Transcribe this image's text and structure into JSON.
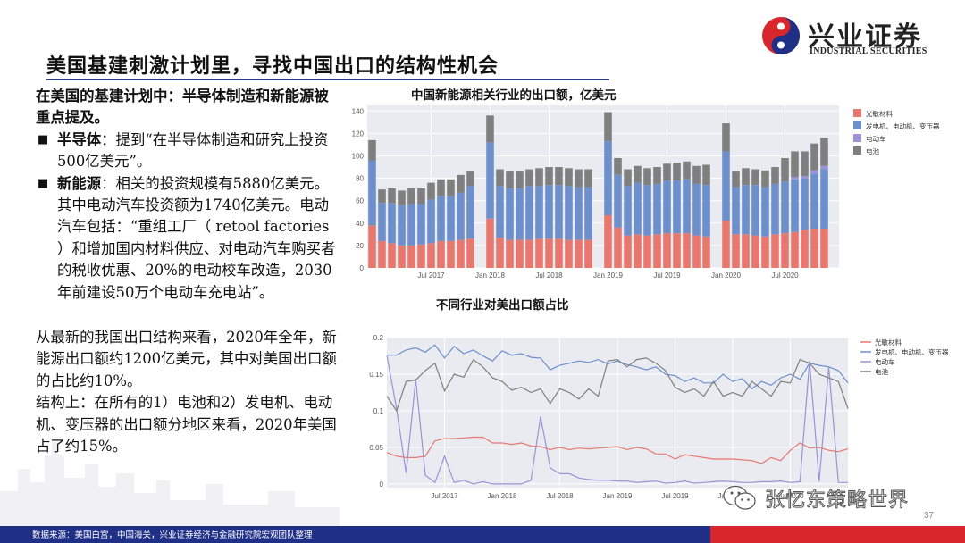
{
  "header": {
    "logo_text": "兴业证券",
    "logo_en": "INDUSTRIAL SECURITIES",
    "title": "美国基建刺激计划里，寻找中国出口的结构性机会"
  },
  "left": {
    "intro": "在美国的基建计划中：半导体制造和新能源被重点提及。",
    "bullets": [
      {
        "label": "半导体",
        "text": "：提到“在半导体制造和研究上投资500亿美元”。"
      },
      {
        "label": "新能源",
        "text": "：相关的投资规模有5880亿美元。其中电动汽车投资额为1740亿美元。电动汽车包括：“重组工厂（ retool factories ）和增加国内材料供应、对电动汽车购买者的税收优惠、20%的电动校车改造，2030年前建设50万个电动车充电站”。"
      }
    ],
    "para2": "从最新的我国出口结构来看，2020年全年，新能源出口额约1200亿美元，其中对美国出口额的占比约10%。",
    "para3": "结构上：在所有的1）电池和2）发电机、电动机、变压器的出口额分地区来看，2020年美国占了约15%。"
  },
  "footer": {
    "source": "数据来源：美国白宫，中国海关，兴业证券经济与金融研究院宏观团队整理",
    "page": "37",
    "watermark": "张忆东策略世界"
  },
  "colors": {
    "solar": "#e8776e",
    "motor": "#6d8fcc",
    "ev": "#9b93d6",
    "battery": "#7f7f7f",
    "brand_blue": "#1f2f86",
    "brand_red": "#d7262c",
    "plot_bg": "#e9ebf1"
  },
  "chart_data": [
    {
      "type": "bar",
      "stacked": true,
      "title": "中国新能源相关行业的出口额，亿美元",
      "ylim": [
        0,
        145
      ],
      "yticks": [
        0,
        20,
        40,
        60,
        80,
        100,
        120,
        140
      ],
      "xtick_labels": [
        "Jul 2017",
        "Jan 2018",
        "Jul 2018",
        "Jan 2019",
        "Jul 2019",
        "Jan 2020",
        "Jul 2020"
      ],
      "xtick_months": [
        6,
        12,
        18,
        24,
        30,
        36,
        42
      ],
      "months": [
        "2017-01",
        "2017-02",
        "2017-03",
        "2017-04",
        "2017-05",
        "2017-06",
        "2017-07",
        "2017-08",
        "2017-09",
        "2017-10",
        "2017-11",
        "2017-12",
        "2018-01",
        "2018-02",
        "2018-03",
        "2018-04",
        "2018-05",
        "2018-06",
        "2018-07",
        "2018-08",
        "2018-09",
        "2018-10",
        "2018-11",
        "2018-12",
        "2019-01",
        "2019-02",
        "2019-03",
        "2019-04",
        "2019-05",
        "2019-06",
        "2019-07",
        "2019-08",
        "2019-09",
        "2019-10",
        "2019-11",
        "2019-12",
        "2020-01",
        "2020-02",
        "2020-03",
        "2020-04",
        "2020-05",
        "2020-06",
        "2020-07",
        "2020-08",
        "2020-09",
        "2020-10",
        "2020-11",
        "2020-12"
      ],
      "missing_months": [
        "2017-12",
        "2018-12",
        "2019-12"
      ],
      "legend_position": "right",
      "series": [
        {
          "name": "光敏材料",
          "values": [
            38,
            24,
            22,
            20,
            20,
            21,
            22,
            24,
            24,
            25,
            26,
            0,
            44,
            27,
            25,
            25,
            25,
            26,
            26,
            26,
            25,
            25,
            25,
            0,
            47,
            36,
            29,
            30,
            29,
            30,
            31,
            31,
            31,
            29,
            28,
            0,
            42,
            30,
            30,
            29,
            28,
            30,
            31,
            32,
            34,
            35,
            35,
            0
          ]
        },
        {
          "name": "发电机、电动机、变压器",
          "values": [
            58,
            34,
            36,
            36,
            37,
            36,
            39,
            40,
            40,
            42,
            47,
            0,
            68,
            46,
            46,
            46,
            48,
            47,
            48,
            48,
            48,
            47,
            47,
            0,
            66,
            47,
            44,
            46,
            45,
            45,
            47,
            47,
            48,
            46,
            46,
            0,
            62,
            42,
            44,
            45,
            44,
            45,
            46,
            47,
            46,
            49,
            53,
            0
          ]
        },
        {
          "name": "电动车",
          "values": [
            0,
            0,
            0,
            0,
            0,
            0,
            0,
            0,
            0,
            0,
            0,
            0,
            0,
            0,
            0,
            0,
            0,
            0,
            0,
            0,
            0,
            0,
            0,
            0,
            0,
            0,
            0,
            0,
            0,
            0,
            0,
            0,
            0,
            0,
            0,
            0,
            0,
            0,
            0,
            0,
            0,
            0,
            0,
            2,
            2,
            3,
            3,
            0
          ]
        },
        {
          "name": "电池",
          "values": [
            18,
            12,
            13,
            13,
            14,
            14,
            15,
            15,
            15,
            16,
            13,
            0,
            24,
            15,
            15,
            15,
            15,
            16,
            16,
            16,
            16,
            16,
            16,
            0,
            26,
            15,
            15,
            15,
            15,
            15,
            15,
            16,
            16,
            16,
            18,
            0,
            25,
            14,
            15,
            14,
            15,
            15,
            21,
            23,
            22,
            24,
            25,
            0
          ]
        }
      ]
    },
    {
      "type": "line",
      "title": "不同行业对美出口额占比",
      "ylim": [
        -0.005,
        0.2
      ],
      "yticks": [
        0,
        0.05,
        0.1,
        0.15,
        0.2
      ],
      "ytick_labels": [
        "0",
        "0.05",
        "0.1",
        "0.15",
        "0.2"
      ],
      "xtick_labels": [
        "Jul 2017",
        "Jan 2018",
        "Jul 2018",
        "Jan 2019",
        "Jul 2019",
        "Jan 2020",
        "Jul 2020"
      ],
      "xtick_months": [
        6,
        12,
        18,
        24,
        30,
        36,
        42
      ],
      "legend_position": "right",
      "series": [
        {
          "name": "光敏材料",
          "values": [
            0.043,
            0.038,
            0.036,
            0.036,
            0.038,
            0.059,
            0.062,
            0.062,
            0.063,
            0.064,
            0.064,
            0.056,
            0.056,
            0.054,
            0.056,
            0.052,
            0.051,
            0.047,
            0.05,
            0.047,
            0.049,
            0.048,
            0.049,
            0.05,
            0.051,
            0.047,
            0.05,
            0.048,
            0.041,
            0.041,
            0.034,
            0.04,
            0.038,
            0.036,
            0.034,
            0.034,
            0.034,
            0.033,
            0.032,
            0.028,
            0.036,
            0.032,
            0.046,
            0.056,
            0.049,
            0.05,
            0.046,
            0.044,
            0.048
          ]
        },
        {
          "name": "发电机、电动机、变压器",
          "values": [
            0.176,
            0.176,
            0.183,
            0.186,
            0.18,
            0.19,
            0.172,
            0.188,
            0.178,
            0.183,
            0.175,
            0.168,
            0.182,
            0.176,
            0.178,
            0.173,
            0.172,
            0.156,
            0.162,
            0.165,
            0.168,
            0.166,
            0.17,
            0.164,
            0.168,
            0.163,
            0.16,
            0.156,
            0.16,
            0.15,
            0.148,
            0.14,
            0.145,
            0.138,
            0.138,
            0.15,
            0.14,
            0.144,
            0.13,
            0.14,
            0.135,
            0.145,
            0.15,
            0.143,
            0.165,
            0.162,
            0.16,
            0.155,
            0.138
          ]
        },
        {
          "name": "电动车",
          "values": [
            0.176,
            0.103,
            0.015,
            0.143,
            0.012,
            0.002,
            0.038,
            0.002,
            0.005,
            0.0,
            0.003,
            0.0,
            0.0,
            0.0,
            0.0,
            0.005,
            0.092,
            0.022,
            0.014,
            0.014,
            0.008,
            0.006,
            0.005,
            0.005,
            0.004,
            0.004,
            0.002,
            0.003,
            0.004,
            0.001,
            0.002,
            0.004,
            0.001,
            0.002,
            0.003,
            0.004,
            0.003,
            0.002,
            0.002,
            0.003,
            0.003,
            0.004,
            0.002,
            0.003,
            0.168,
            0.003,
            0.16,
            0.002,
            0.002
          ]
        },
        {
          "name": "电池",
          "values": [
            0.12,
            0.1,
            0.14,
            0.142,
            0.155,
            0.165,
            0.127,
            0.15,
            0.146,
            0.17,
            0.16,
            0.145,
            0.14,
            0.128,
            0.132,
            0.125,
            0.13,
            0.11,
            0.13,
            0.125,
            0.116,
            0.13,
            0.12,
            0.168,
            0.17,
            0.16,
            0.17,
            0.172,
            0.165,
            0.155,
            0.132,
            0.125,
            0.13,
            0.12,
            0.14,
            0.12,
            0.125,
            0.12,
            0.14,
            0.13,
            0.12,
            0.14,
            0.138,
            0.17,
            0.165,
            0.15,
            0.145,
            0.14,
            0.103
          ]
        }
      ]
    }
  ]
}
